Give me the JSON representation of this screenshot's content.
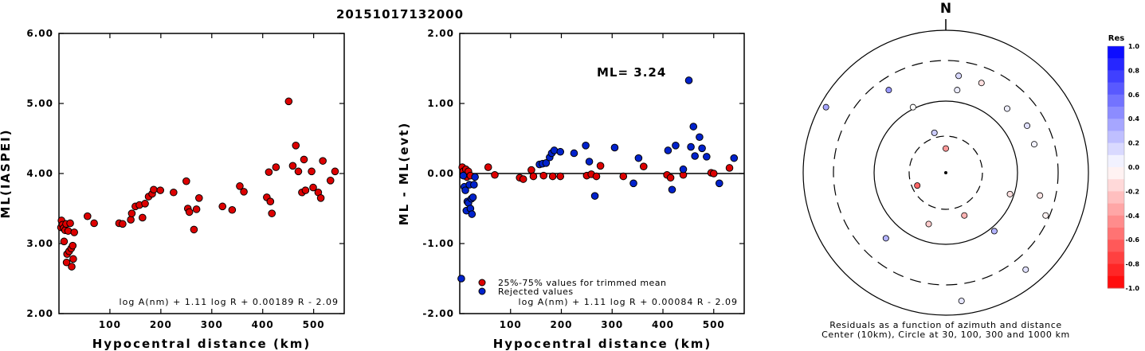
{
  "title": "20151017132000",
  "chart_data": [
    {
      "type": "scatter",
      "id": "ml-vs-distance",
      "xlabel": "Hypocentral distance (km)",
      "ylabel": "ML(IASPEI)",
      "xlim": [
        0,
        560
      ],
      "ylim": [
        2.0,
        6.0
      ],
      "xticks": [
        100,
        200,
        300,
        400,
        500
      ],
      "yticks": [
        2.0,
        3.0,
        4.0,
        5.0,
        6.0
      ],
      "ytick_labels": [
        "2.00",
        "3.00",
        "4.00",
        "5.00",
        "6.00"
      ],
      "formula": "log A(nm) + 1.11 log R + 0.00189 R - 2.09",
      "marker_color": "#dd0000",
      "points": [
        [
          4,
          3.23
        ],
        [
          5,
          3.33
        ],
        [
          7,
          3.27
        ],
        [
          9,
          3.22
        ],
        [
          10,
          3.03
        ],
        [
          12,
          3.19
        ],
        [
          14,
          3.28
        ],
        [
          15,
          2.73
        ],
        [
          16,
          2.85
        ],
        [
          18,
          3.18
        ],
        [
          20,
          2.89
        ],
        [
          22,
          3.29
        ],
        [
          24,
          2.93
        ],
        [
          25,
          2.67
        ],
        [
          27,
          2.97
        ],
        [
          28,
          2.78
        ],
        [
          30,
          3.16
        ],
        [
          56,
          3.39
        ],
        [
          69,
          3.29
        ],
        [
          118,
          3.29
        ],
        [
          125,
          3.28
        ],
        [
          141,
          3.34
        ],
        [
          143,
          3.43
        ],
        [
          150,
          3.53
        ],
        [
          158,
          3.55
        ],
        [
          164,
          3.37
        ],
        [
          169,
          3.57
        ],
        [
          176,
          3.67
        ],
        [
          183,
          3.71
        ],
        [
          186,
          3.77
        ],
        [
          199,
          3.76
        ],
        [
          225,
          3.73
        ],
        [
          250,
          3.89
        ],
        [
          253,
          3.5
        ],
        [
          256,
          3.45
        ],
        [
          265,
          3.2
        ],
        [
          270,
          3.49
        ],
        [
          275,
          3.65
        ],
        [
          321,
          3.53
        ],
        [
          340,
          3.48
        ],
        [
          355,
          3.82
        ],
        [
          363,
          3.74
        ],
        [
          408,
          3.66
        ],
        [
          412,
          4.02
        ],
        [
          415,
          3.6
        ],
        [
          418,
          3.43
        ],
        [
          426,
          4.09
        ],
        [
          451,
          5.03
        ],
        [
          459,
          4.11
        ],
        [
          465,
          4.4
        ],
        [
          470,
          4.03
        ],
        [
          477,
          3.73
        ],
        [
          481,
          4.2
        ],
        [
          484,
          3.76
        ],
        [
          496,
          4.03
        ],
        [
          499,
          3.8
        ],
        [
          509,
          3.73
        ],
        [
          514,
          3.65
        ],
        [
          518,
          4.18
        ],
        [
          533,
          3.9
        ],
        [
          542,
          4.03
        ]
      ]
    },
    {
      "type": "scatter",
      "id": "residual-vs-distance",
      "xlabel": "Hypocentral distance (km)",
      "ylabel": "ML - ML(evt)",
      "xlim": [
        0,
        560
      ],
      "ylim": [
        -2.0,
        2.0
      ],
      "xticks": [
        100,
        200,
        300,
        400,
        500
      ],
      "yticks": [
        -2.0,
        -1.0,
        0.0,
        1.0,
        2.0
      ],
      "ytick_labels": [
        "-2.00",
        "-1.00",
        "0.00",
        "1.00",
        "2.00"
      ],
      "ml_label": "ML= 3.24",
      "formula": "log A(nm) + 1.11 log R + 0.00084 R - 2.09",
      "legend": [
        {
          "label": "25%-75% values for trimmed mean",
          "color": "#dd0000"
        },
        {
          "label": "Rejected values",
          "color": "#0022cc"
        }
      ],
      "used_points": [
        [
          5,
          0.09
        ],
        [
          7,
          0.03
        ],
        [
          10,
          -0.02
        ],
        [
          12,
          0.06
        ],
        [
          14,
          -0.05
        ],
        [
          17,
          0.03
        ],
        [
          21,
          -0.03
        ],
        [
          56,
          0.09
        ],
        [
          69,
          -0.02
        ],
        [
          118,
          -0.06
        ],
        [
          125,
          -0.08
        ],
        [
          141,
          0.05
        ],
        [
          145,
          -0.04
        ],
        [
          165,
          -0.03
        ],
        [
          183,
          -0.04
        ],
        [
          198,
          -0.04
        ],
        [
          250,
          -0.03
        ],
        [
          259,
          -0.01
        ],
        [
          269,
          -0.04
        ],
        [
          277,
          0.11
        ],
        [
          322,
          -0.04
        ],
        [
          362,
          0.1
        ],
        [
          408,
          -0.02
        ],
        [
          415,
          -0.06
        ],
        [
          440,
          -0.02
        ],
        [
          495,
          0.01
        ],
        [
          500,
          0.0
        ],
        [
          531,
          0.08
        ]
      ],
      "rejected_points": [
        [
          3,
          -1.5
        ],
        [
          7,
          -0.03
        ],
        [
          9,
          -0.19
        ],
        [
          11,
          -0.24
        ],
        [
          13,
          -0.53
        ],
        [
          15,
          -0.4
        ],
        [
          17,
          -0.42
        ],
        [
          19,
          -0.16
        ],
        [
          21,
          -0.5
        ],
        [
          23,
          -0.36
        ],
        [
          24,
          -0.58
        ],
        [
          26,
          -0.34
        ],
        [
          28,
          -0.16
        ],
        [
          30,
          -0.05
        ],
        [
          157,
          0.13
        ],
        [
          163,
          0.14
        ],
        [
          170,
          0.15
        ],
        [
          177,
          0.23
        ],
        [
          181,
          0.29
        ],
        [
          186,
          0.33
        ],
        [
          198,
          0.31
        ],
        [
          225,
          0.29
        ],
        [
          248,
          0.4
        ],
        [
          255,
          0.17
        ],
        [
          266,
          -0.32
        ],
        [
          305,
          0.37
        ],
        [
          342,
          -0.14
        ],
        [
          352,
          0.22
        ],
        [
          410,
          0.33
        ],
        [
          418,
          -0.23
        ],
        [
          425,
          0.4
        ],
        [
          440,
          0.06
        ],
        [
          451,
          1.33
        ],
        [
          455,
          0.38
        ],
        [
          460,
          0.67
        ],
        [
          463,
          0.25
        ],
        [
          472,
          0.52
        ],
        [
          477,
          0.36
        ],
        [
          486,
          0.24
        ],
        [
          511,
          -0.14
        ],
        [
          540,
          0.22
        ]
      ]
    },
    {
      "type": "polar-scatter",
      "id": "azimuth-residuals",
      "north_label": "N",
      "caption_line1": "Residuals as a function of azimuth and distance",
      "caption_line2": "Center (10km), Circle at 30, 100, 300 and 1000 km",
      "rings_km": [
        30,
        100,
        300,
        1000
      ],
      "colorbar": {
        "title": "Res",
        "min": -1.0,
        "max": 1.0,
        "tick_values": [
          1.0,
          0.8,
          0.6,
          0.4,
          0.2,
          0.0,
          -0.2,
          -0.4,
          -0.6,
          -0.8,
          -1.0
        ],
        "tick_labels": [
          "1.0",
          "0.8",
          "0.6",
          "0.4",
          "0.2",
          "0.0",
          "-0.2",
          "-0.4",
          "-0.6",
          "-0.8",
          "-1.0"
        ]
      },
      "stations": [
        {
          "dx": 0.09,
          "dy": -0.68,
          "res": 0.15
        },
        {
          "dx": 0.08,
          "dy": -0.58,
          "res": 0.08
        },
        {
          "dx": 0.25,
          "dy": -0.63,
          "res": -0.12
        },
        {
          "dx": 0.43,
          "dy": -0.45,
          "res": 0.07
        },
        {
          "dx": 0.57,
          "dy": -0.33,
          "res": 0.12
        },
        {
          "dx": 0.62,
          "dy": -0.2,
          "res": 0.05
        },
        {
          "dx": 0.66,
          "dy": 0.16,
          "res": -0.1
        },
        {
          "dx": 0.7,
          "dy": 0.3,
          "res": -0.05
        },
        {
          "dx": 0.56,
          "dy": 0.68,
          "res": 0.12
        },
        {
          "dx": 0.11,
          "dy": 0.9,
          "res": 0.1
        },
        {
          "dx": -0.4,
          "dy": -0.58,
          "res": 0.4
        },
        {
          "dx": -0.84,
          "dy": -0.46,
          "res": 0.35
        },
        {
          "dx": -0.23,
          "dy": -0.46,
          "res": 0.0
        },
        {
          "dx": 0.13,
          "dy": 0.3,
          "res": -0.3
        },
        {
          "dx": 0.45,
          "dy": 0.15,
          "res": -0.12
        },
        {
          "dx": -0.12,
          "dy": 0.36,
          "res": -0.2
        },
        {
          "dx": -0.42,
          "dy": 0.46,
          "res": 0.3
        },
        {
          "dx": -0.0,
          "dy": -0.17,
          "res": -0.4
        },
        {
          "dx": -0.08,
          "dy": -0.28,
          "res": 0.2
        },
        {
          "dx": -0.2,
          "dy": 0.09,
          "res": -0.6
        },
        {
          "dx": 0.34,
          "dy": 0.41,
          "res": 0.3
        }
      ]
    }
  ]
}
